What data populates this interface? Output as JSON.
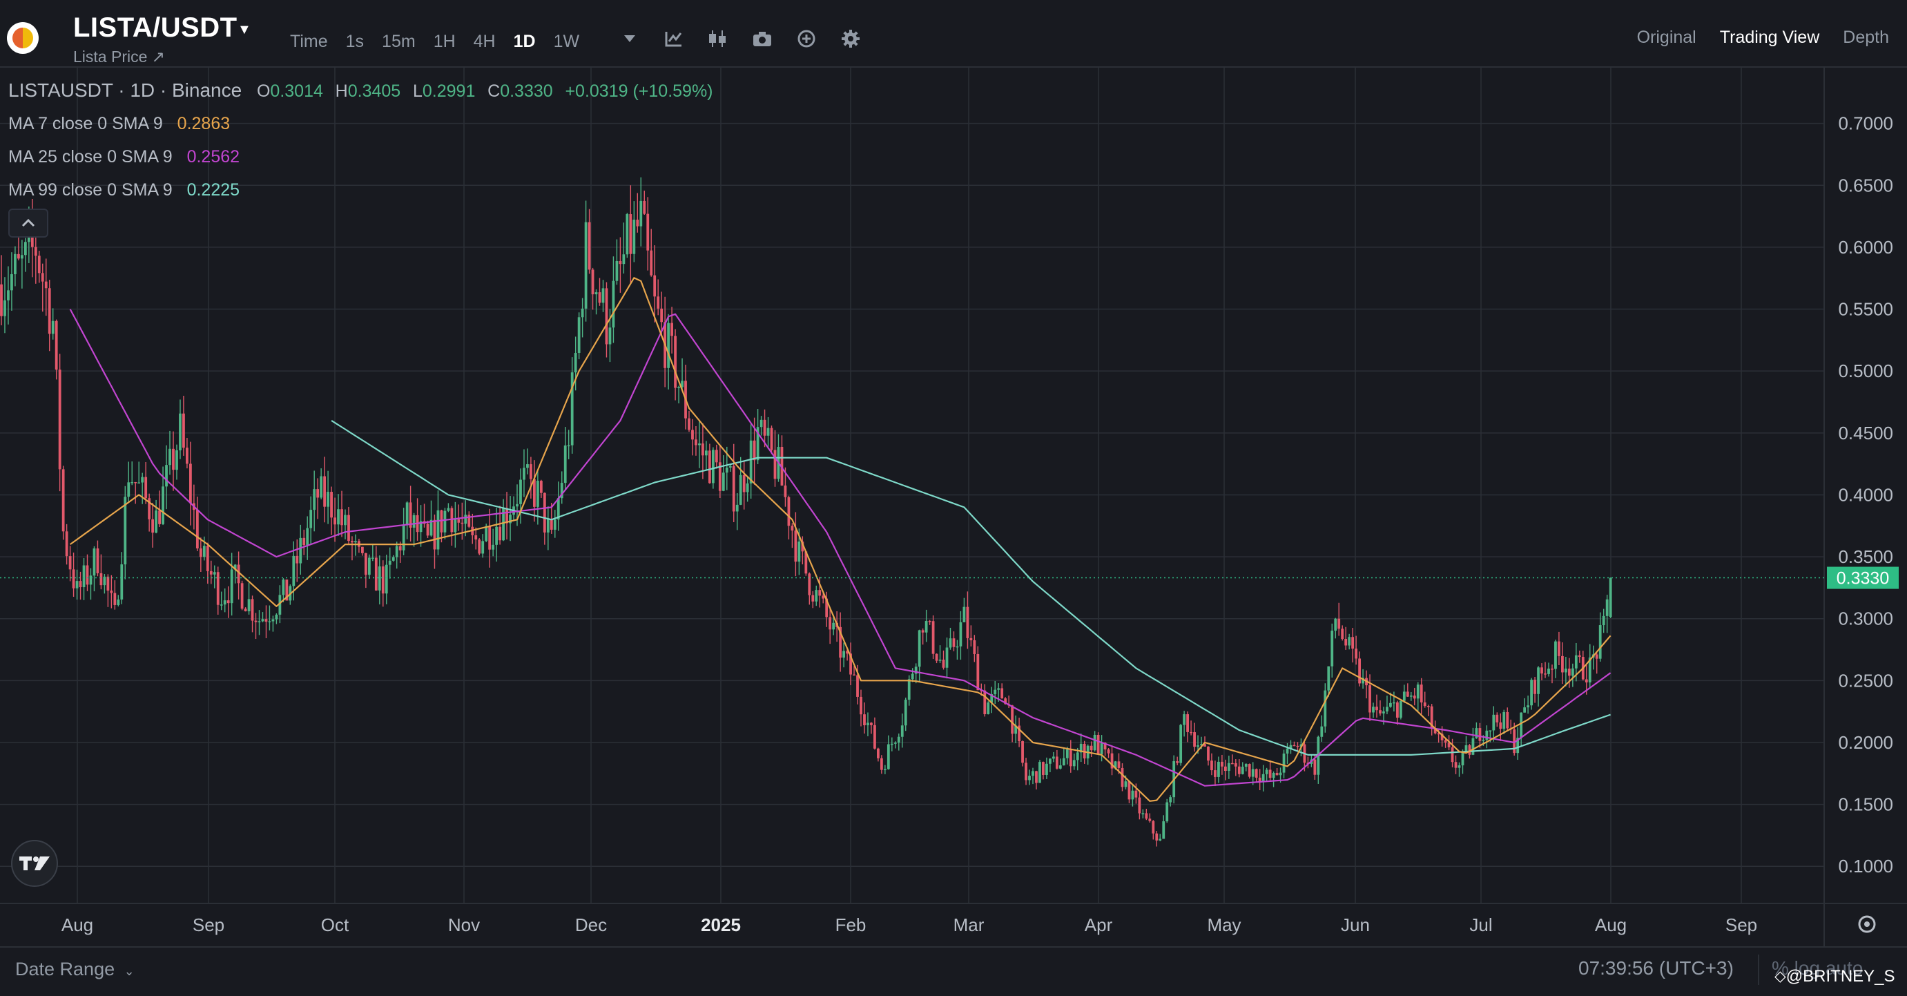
{
  "header": {
    "pair": "LISTA/USDT",
    "subtitle": "Lista Price ↗",
    "intervals": [
      "Time",
      "1s",
      "15m",
      "1H",
      "4H",
      "1D",
      "1W"
    ],
    "active_interval": "1D",
    "tools": [
      "dropdown-caret-icon",
      "indicator-icon",
      "candle-type-icon",
      "camera-icon",
      "plus-circle-icon",
      "gear-icon"
    ],
    "views": [
      "Original",
      "Trading View",
      "Depth"
    ],
    "active_view": "Trading View"
  },
  "legend": {
    "ohlc_title": "LISTAUSDT · 1D · Binance",
    "o_label": "O",
    "o_value": "0.3014",
    "h_label": "H",
    "h_value": "0.3405",
    "l_label": "L",
    "l_value": "0.2991",
    "c_label": "C",
    "c_value": "0.3330",
    "change": "+0.0319 (+10.59%)",
    "ma7_label": "MA 7 close 0 SMA 9",
    "ma7_value": "0.2863",
    "ma25_label": "MA 25 close 0 SMA 9",
    "ma25_value": "0.2562",
    "ma99_label": "MA 99 close 0 SMA 9",
    "ma99_value": "0.2225"
  },
  "colors": {
    "up": "#4fb587",
    "down": "#e3596b",
    "ma7": "#e7a54c",
    "ma25": "#c245d1",
    "ma99": "#7ed9c9",
    "grid": "#2b2f36",
    "price_tag": "#2ebd85"
  },
  "chart_data": {
    "type": "candlestick",
    "y_ticks": [
      "0.7000",
      "0.6500",
      "0.6000",
      "0.5500",
      "0.5000",
      "0.4500",
      "0.4000",
      "0.3500",
      "0.3000",
      "0.2500",
      "0.2000",
      "0.1500",
      "0.1000"
    ],
    "ylim": [
      0.07,
      0.745
    ],
    "x_ticks": [
      "Aug",
      "Sep",
      "Oct",
      "Nov",
      "Dec",
      "2025",
      "Feb",
      "Mar",
      "Apr",
      "May",
      "Jun",
      "Jul",
      "Aug",
      "Sep"
    ],
    "last_price": "0.3330",
    "close_path": [
      [
        0,
        0.57
      ],
      [
        5,
        0.58
      ],
      [
        10,
        0.6
      ],
      [
        15,
        0.54
      ],
      [
        18,
        0.37
      ],
      [
        22,
        0.32
      ],
      [
        28,
        0.35
      ],
      [
        33,
        0.3
      ],
      [
        37,
        0.42
      ],
      [
        45,
        0.38
      ],
      [
        52,
        0.45
      ],
      [
        58,
        0.35
      ],
      [
        64,
        0.32
      ],
      [
        68,
        0.33
      ],
      [
        75,
        0.3
      ],
      [
        83,
        0.32
      ],
      [
        92,
        0.4
      ],
      [
        97,
        0.39
      ],
      [
        105,
        0.34
      ],
      [
        112,
        0.33
      ],
      [
        118,
        0.38
      ],
      [
        124,
        0.36
      ],
      [
        130,
        0.39
      ],
      [
        137,
        0.36
      ],
      [
        145,
        0.38
      ],
      [
        152,
        0.41
      ],
      [
        156,
        0.4
      ],
      [
        160,
        0.36
      ],
      [
        165,
        0.45
      ],
      [
        170,
        0.6
      ],
      [
        176,
        0.54
      ],
      [
        182,
        0.6
      ],
      [
        186,
        0.62
      ],
      [
        190,
        0.55
      ],
      [
        196,
        0.5
      ],
      [
        202,
        0.44
      ],
      [
        208,
        0.42
      ],
      [
        214,
        0.4
      ],
      [
        220,
        0.45
      ],
      [
        226,
        0.42
      ],
      [
        232,
        0.35
      ],
      [
        240,
        0.3
      ],
      [
        248,
        0.25
      ],
      [
        256,
        0.18
      ],
      [
        262,
        0.22
      ],
      [
        268,
        0.3
      ],
      [
        274,
        0.26
      ],
      [
        280,
        0.3
      ],
      [
        286,
        0.23
      ],
      [
        292,
        0.24
      ],
      [
        298,
        0.17
      ],
      [
        304,
        0.18
      ],
      [
        312,
        0.19
      ],
      [
        318,
        0.2
      ],
      [
        326,
        0.17
      ],
      [
        332,
        0.14
      ],
      [
        337,
        0.12
      ],
      [
        344,
        0.22
      ],
      [
        352,
        0.18
      ],
      [
        362,
        0.18
      ],
      [
        370,
        0.17
      ],
      [
        376,
        0.2
      ],
      [
        382,
        0.18
      ],
      [
        388,
        0.3
      ],
      [
        394,
        0.26
      ],
      [
        400,
        0.22
      ],
      [
        406,
        0.23
      ],
      [
        412,
        0.24
      ],
      [
        418,
        0.2
      ],
      [
        424,
        0.18
      ],
      [
        430,
        0.21
      ],
      [
        436,
        0.22
      ],
      [
        440,
        0.2
      ],
      [
        446,
        0.25
      ],
      [
        452,
        0.27
      ],
      [
        458,
        0.26
      ],
      [
        462,
        0.26
      ],
      [
        466,
        0.29
      ],
      [
        468,
        0.333
      ]
    ],
    "ma7_path": [
      [
        20,
        0.36
      ],
      [
        40,
        0.4
      ],
      [
        60,
        0.36
      ],
      [
        80,
        0.31
      ],
      [
        100,
        0.36
      ],
      [
        120,
        0.36
      ],
      [
        150,
        0.38
      ],
      [
        168,
        0.5
      ],
      [
        185,
        0.58
      ],
      [
        200,
        0.47
      ],
      [
        215,
        0.42
      ],
      [
        230,
        0.38
      ],
      [
        250,
        0.25
      ],
      [
        265,
        0.25
      ],
      [
        285,
        0.24
      ],
      [
        300,
        0.2
      ],
      [
        320,
        0.19
      ],
      [
        335,
        0.15
      ],
      [
        350,
        0.2
      ],
      [
        375,
        0.18
      ],
      [
        390,
        0.26
      ],
      [
        410,
        0.23
      ],
      [
        425,
        0.19
      ],
      [
        445,
        0.22
      ],
      [
        460,
        0.26
      ],
      [
        468,
        0.2863
      ]
    ],
    "ma25_path": [
      [
        20,
        0.55
      ],
      [
        45,
        0.42
      ],
      [
        60,
        0.38
      ],
      [
        80,
        0.35
      ],
      [
        100,
        0.37
      ],
      [
        130,
        0.38
      ],
      [
        160,
        0.39
      ],
      [
        180,
        0.46
      ],
      [
        195,
        0.55
      ],
      [
        215,
        0.47
      ],
      [
        240,
        0.37
      ],
      [
        260,
        0.26
      ],
      [
        280,
        0.25
      ],
      [
        300,
        0.22
      ],
      [
        330,
        0.19
      ],
      [
        350,
        0.165
      ],
      [
        375,
        0.17
      ],
      [
        395,
        0.22
      ],
      [
        420,
        0.21
      ],
      [
        440,
        0.2
      ],
      [
        455,
        0.23
      ],
      [
        468,
        0.2562
      ]
    ],
    "ma99_path": [
      [
        96,
        0.46
      ],
      [
        130,
        0.4
      ],
      [
        160,
        0.38
      ],
      [
        190,
        0.41
      ],
      [
        220,
        0.43
      ],
      [
        240,
        0.43
      ],
      [
        260,
        0.41
      ],
      [
        280,
        0.39
      ],
      [
        300,
        0.33
      ],
      [
        330,
        0.26
      ],
      [
        360,
        0.21
      ],
      [
        380,
        0.19
      ],
      [
        410,
        0.19
      ],
      [
        440,
        0.195
      ],
      [
        455,
        0.21
      ],
      [
        468,
        0.2225
      ]
    ]
  },
  "bottom": {
    "date_range": "Date Range",
    "clock": "07:39:56 (UTC+3)",
    "scale_options": "%  log  auto",
    "watermark": "⬦@BRITNEY_S"
  }
}
